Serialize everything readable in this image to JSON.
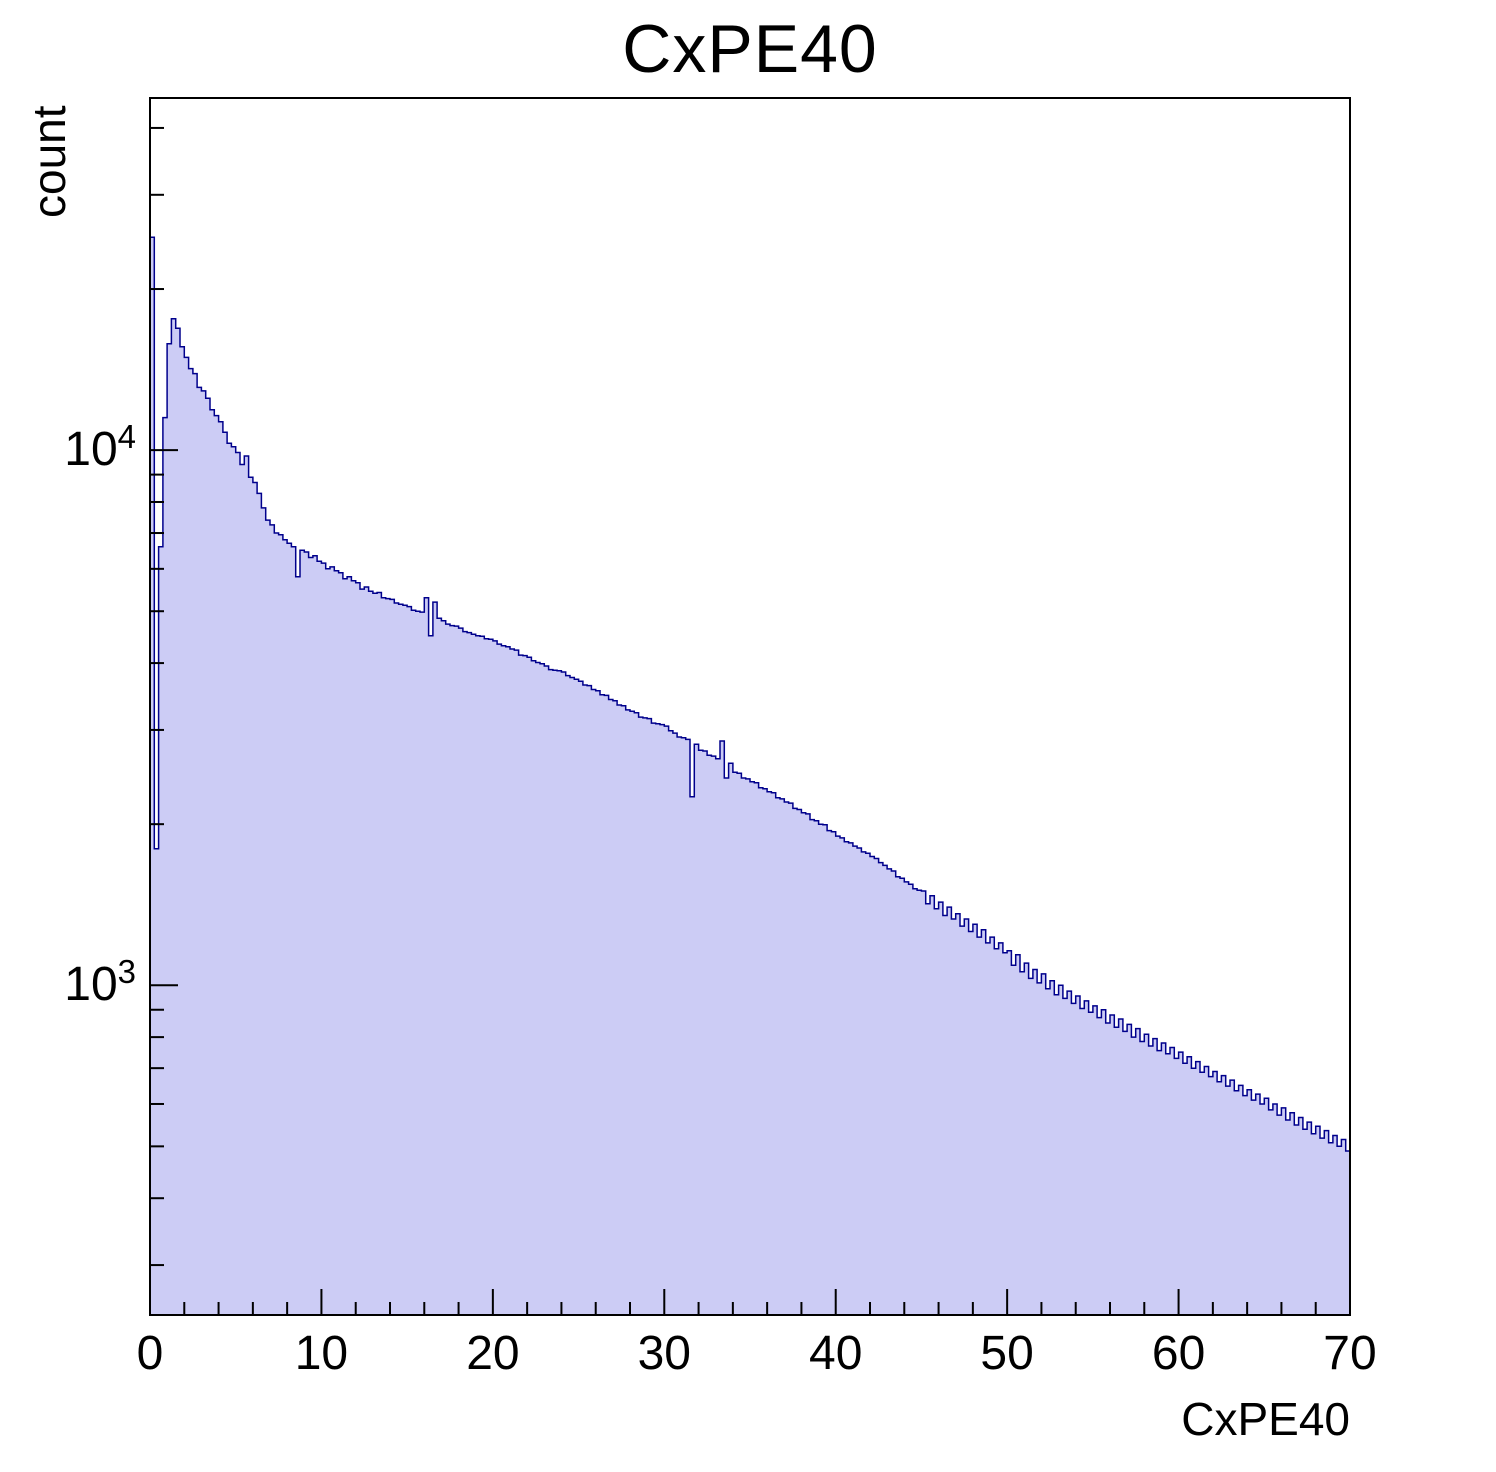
{
  "title": "CxPE40",
  "x_axis_label": "CxPE40",
  "y_axis_label": "count",
  "chart_data": {
    "type": "histogram",
    "title": "CxPE40",
    "xlabel": "CxPE40",
    "ylabel": "count",
    "yscale": "log",
    "grid": false,
    "legend": "none",
    "x_min": 0,
    "bin_width": 0.25,
    "xlim": [
      0,
      70
    ],
    "ylim": [
      242,
      45500
    ],
    "x_ticks": [
      0,
      10,
      20,
      30,
      40,
      50,
      60,
      70
    ],
    "x_minor_tick_step": 2,
    "y_ticks": [
      {
        "value": 1000,
        "base": "10",
        "exp": "3"
      },
      {
        "value": 10000,
        "base": "10",
        "exp": "4"
      }
    ],
    "fill_color": "#ccccf5",
    "line_color": "#00008c",
    "counts": [
      25000,
      1800,
      6600,
      11500,
      15800,
      17600,
      16900,
      15600,
      14900,
      14200,
      13900,
      13100,
      12900,
      12500,
      11900,
      11600,
      11300,
      10800,
      10300,
      10150,
      9900,
      9400,
      9750,
      8900,
      8700,
      8300,
      7800,
      7400,
      7250,
      7000,
      6950,
      6800,
      6700,
      6600,
      5800,
      6500,
      6450,
      6300,
      6350,
      6200,
      6150,
      6000,
      6050,
      5950,
      5900,
      5750,
      5800,
      5700,
      5650,
      5500,
      5550,
      5450,
      5400,
      5420,
      5300,
      5280,
      5260,
      5180,
      5150,
      5130,
      5100,
      5020,
      5000,
      4980,
      5300,
      4500,
      5200,
      4850,
      4800,
      4730,
      4700,
      4690,
      4650,
      4580,
      4560,
      4530,
      4500,
      4490,
      4440,
      4430,
      4400,
      4340,
      4310,
      4290,
      4250,
      4230,
      4140,
      4130,
      4100,
      4040,
      4010,
      3990,
      3950,
      3890,
      3880,
      3870,
      3850,
      3790,
      3760,
      3730,
      3700,
      3640,
      3630,
      3570,
      3550,
      3490,
      3480,
      3420,
      3400,
      3340,
      3330,
      3270,
      3250,
      3230,
      3170,
      3160,
      3150,
      3090,
      3080,
      3070,
      3050,
      2990,
      2960,
      2910,
      2900,
      2880,
      2250,
      2820,
      2750,
      2740,
      2690,
      2680,
      2650,
      2860,
      2440,
      2600,
      2500,
      2490,
      2440,
      2430,
      2400,
      2390,
      2340,
      2330,
      2300,
      2290,
      2240,
      2230,
      2200,
      2190,
      2140,
      2130,
      2100,
      2090,
      2040,
      2030,
      2000,
      1995,
      1945,
      1935,
      1900,
      1885,
      1855,
      1845,
      1820,
      1805,
      1775,
      1765,
      1740,
      1725,
      1695,
      1675,
      1650,
      1635,
      1595,
      1585,
      1560,
      1545,
      1515,
      1505,
      1500,
      1420,
      1470,
      1390,
      1430,
      1350,
      1400,
      1330,
      1360,
      1290,
      1330,
      1260,
      1300,
      1230,
      1270,
      1200,
      1230,
      1170,
      1200,
      1150,
      1160,
      1090,
      1140,
      1060,
      1100,
      1030,
      1070,
      1010,
      1050,
      985,
      1020,
      960,
      1000,
      945,
      975,
      925,
      955,
      905,
      935,
      890,
      915,
      870,
      900,
      850,
      880,
      835,
      865,
      820,
      845,
      800,
      830,
      785,
      810,
      770,
      795,
      755,
      780,
      745,
      765,
      730,
      750,
      715,
      735,
      700,
      720,
      688,
      705,
      675,
      690,
      660,
      678,
      648,
      665,
      635,
      650,
      622,
      638,
      610,
      626,
      600,
      615,
      585,
      600,
      572,
      590,
      560,
      578,
      548,
      566,
      538,
      555,
      528,
      545,
      518,
      535,
      508,
      524,
      500,
      515,
      490
    ]
  }
}
